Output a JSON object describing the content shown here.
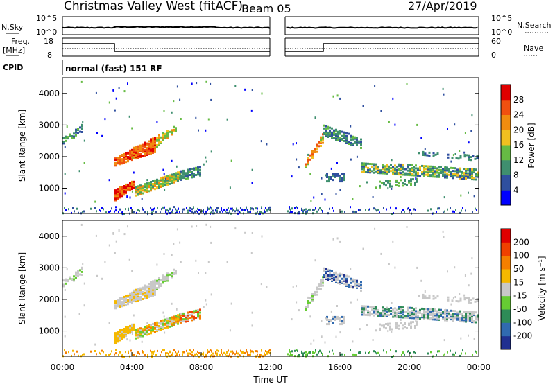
{
  "header": {
    "title": "Christmas Valley West (fitACF)",
    "beam": "Beam 05",
    "date": "27/Apr/2019"
  },
  "summary": {
    "nsky_label": "N.Sky",
    "nsky_ticks": [
      "10^5",
      "10^0"
    ],
    "nsearch_label": "N.Search",
    "nsearch_ticks": [
      "10^5",
      "10^0"
    ],
    "freq_label_1": "Freq.",
    "freq_label_2": "[MHz]",
    "freq_ticks": [
      "18",
      "8"
    ],
    "nave_label": "Nave",
    "nave_ticks": [
      "60",
      "0"
    ],
    "cpid_label": "CPID",
    "cpid_value": "normal (fast) 151 RF"
  },
  "colors": {
    "power_scale": [
      "#0000ff",
      "#2f4f9f",
      "#3f8f6f",
      "#66bb44",
      "#f0c020",
      "#f08c10",
      "#f05010",
      "#e00000"
    ],
    "velocity_scale": [
      "#203090",
      "#306ab0",
      "#2e8b57",
      "#66cc33",
      "#c8c8c8",
      "#f5b800",
      "#f57f00",
      "#f04000",
      "#e00000"
    ]
  },
  "chart_data": [
    {
      "type": "heatmap",
      "name": "power",
      "ylabel": "Slant Range [km]",
      "y_ticks": [
        "1000",
        "2000",
        "3000",
        "4000"
      ],
      "ylim": [
        200,
        4500
      ],
      "colorbar_label": "Power [dB]",
      "colorbar_ticks": [
        "4",
        "8",
        "12",
        "16",
        "20",
        "24",
        "28"
      ]
    },
    {
      "type": "heatmap",
      "name": "velocity",
      "ylabel": "Slant Range [km]",
      "y_ticks": [
        "1000",
        "2000",
        "3000",
        "4000"
      ],
      "ylim": [
        200,
        4500
      ],
      "colorbar_label": "Velocity [m s⁻¹]",
      "colorbar_ticks": [
        "200",
        "100",
        "50",
        "15",
        "-15",
        "-50",
        "-100",
        "-200"
      ]
    }
  ],
  "x_axis": {
    "label": "Time UT",
    "ticks": [
      "00:00",
      "04:00",
      "08:00",
      "12:00",
      "16:00",
      "20:00",
      "00:00"
    ]
  }
}
